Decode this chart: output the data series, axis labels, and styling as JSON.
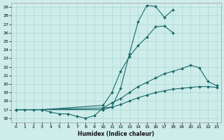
{
  "xlabel": "Humidex (Indice chaleur)",
  "bg_color": "#ceecea",
  "line_color": "#1a6b6b",
  "grid_color": "#aad8d4",
  "xlim": [
    -0.5,
    23.5
  ],
  "ylim": [
    15.5,
    29.5
  ],
  "yticks": [
    16,
    17,
    18,
    19,
    20,
    21,
    22,
    23,
    24,
    25,
    26,
    27,
    28,
    29
  ],
  "xticks": [
    0,
    1,
    2,
    3,
    4,
    5,
    6,
    7,
    8,
    9,
    10,
    11,
    12,
    13,
    14,
    15,
    16,
    17,
    18,
    19,
    20,
    21,
    22,
    23
  ],
  "line1_x": [
    0,
    1,
    2,
    3,
    4,
    5,
    6,
    7,
    8,
    9,
    10,
    11,
    12,
    13,
    14,
    15,
    16,
    17,
    18
  ],
  "line1_y": [
    17,
    17,
    17,
    17,
    16.7,
    16.5,
    16.5,
    16.2,
    16.0,
    16.3,
    17.2,
    17.3,
    19.5,
    23.5,
    27.3,
    29.2,
    29.1,
    27.8,
    28.7
  ],
  "line2_x": [
    0,
    3,
    10,
    11,
    12,
    13,
    14,
    15,
    16,
    17,
    18
  ],
  "line2_y": [
    17,
    17,
    17.5,
    19.0,
    21.5,
    23.2,
    24.5,
    25.5,
    26.7,
    26.8,
    26.0
  ],
  "line3_x": [
    0,
    3,
    10,
    11,
    12,
    13,
    14,
    15,
    16,
    17,
    18,
    19,
    20,
    21,
    22,
    23
  ],
  "line3_y": [
    17,
    17,
    17.2,
    17.8,
    18.3,
    19.0,
    19.7,
    20.2,
    20.7,
    21.2,
    21.5,
    21.8,
    22.2,
    21.9,
    20.3,
    19.8
  ],
  "line4_x": [
    0,
    3,
    10,
    11,
    12,
    13,
    14,
    15,
    16,
    17,
    18,
    19,
    20,
    21,
    22,
    23
  ],
  "line4_y": [
    17,
    17,
    17.0,
    17.3,
    17.6,
    18.0,
    18.4,
    18.7,
    19.0,
    19.2,
    19.4,
    19.5,
    19.6,
    19.7,
    19.7,
    19.6
  ]
}
